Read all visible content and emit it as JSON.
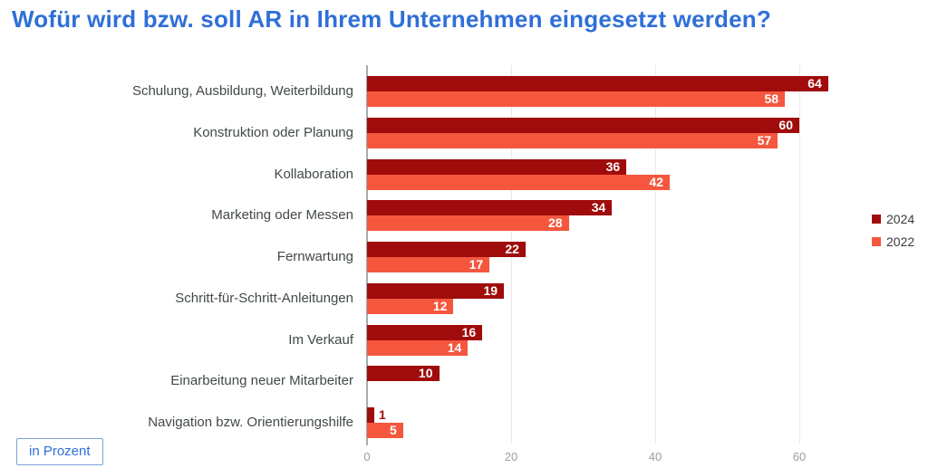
{
  "title": "Wofür wird bzw. soll AR in Ihrem Unternehmen eingesetzt werden?",
  "unit_label": "in Prozent",
  "colors": {
    "accent_blue": "#2f6fd8",
    "unit_box_border": "#7da2d6",
    "series_2024": "#a00c0c",
    "series_2022": "#f5573e",
    "category_label": "#414a46",
    "axis_line": "#a3aeae",
    "gridline": "#e7e9e9",
    "tick_label": "#98a09e"
  },
  "chart_data": {
    "type": "bar",
    "orientation": "horizontal",
    "title": "Wofür wird bzw. soll AR in Ihrem Unternehmen eingesetzt werden?",
    "unit": "in Prozent",
    "categories": [
      "Schulung, Ausbildung, Weiterbildung",
      "Konstruktion oder Planung",
      "Kollaboration",
      "Marketing oder Messen",
      "Fernwartung",
      "Schritt-für-Schritt-Anleitungen",
      "Im Verkauf",
      "Einarbeitung neuer Mitarbeiter",
      "Navigation bzw. Orientierungshilfe"
    ],
    "series": [
      {
        "name": "2024",
        "color": "#a00c0c",
        "values": [
          64,
          60,
          36,
          34,
          22,
          19,
          16,
          10,
          1
        ]
      },
      {
        "name": "2022",
        "color": "#f5573e",
        "values": [
          58,
          57,
          42,
          28,
          17,
          12,
          14,
          null,
          5
        ]
      }
    ],
    "x_ticks": [
      0,
      20,
      40,
      60
    ],
    "xlim": [
      0,
      68
    ],
    "value_labels": true,
    "grid": "vertical",
    "legend_position": "right"
  }
}
